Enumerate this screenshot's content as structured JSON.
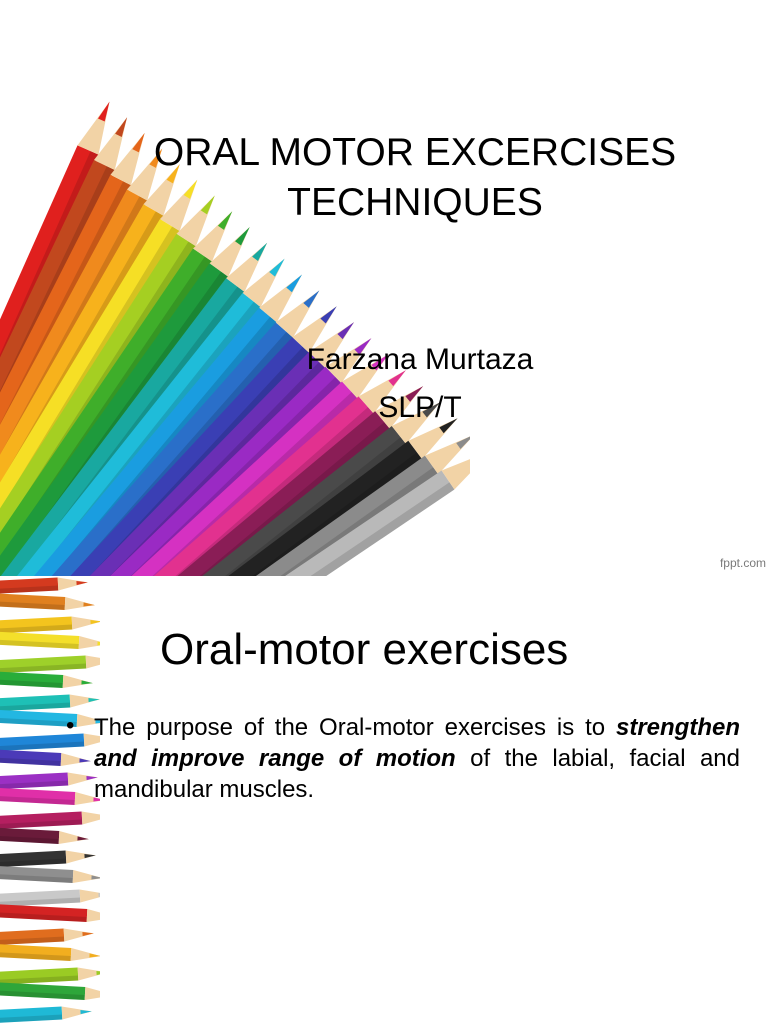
{
  "slide1": {
    "title_line1": "ORAL MOTOR EXCERCISES",
    "title_line2": "TECHNIQUES",
    "author": "Farzana Murtaza",
    "credential": "SLP/T",
    "credit": "fppt.com",
    "pencil_colors": [
      "#e0201e",
      "#c1481e",
      "#e4651b",
      "#f08a1d",
      "#f7b21c",
      "#f6df25",
      "#a5cf22",
      "#3fae2a",
      "#1e9a3c",
      "#19a8a0",
      "#1fbcd9",
      "#1a9de0",
      "#2a6fc9",
      "#3a3fb4",
      "#6a2fb5",
      "#9a2ac4",
      "#d531c2",
      "#e2318f",
      "#8a1d56",
      "#4a4a4a",
      "#222222",
      "#8b8b8b",
      "#b9b9b9"
    ]
  },
  "slide2": {
    "title": "Oral-motor exercises",
    "bullet_marker": "•",
    "bullet_pre": "The purpose of the Oral-motor exercises is to ",
    "bullet_emphasis": "strengthen and improve range of motion",
    "bullet_post": " of the labial, facial and mandibular muscles.",
    "pencil_colors": [
      "#d43a1f",
      "#e0801f",
      "#f3c41e",
      "#f4df2a",
      "#9ed02a",
      "#29ad3a",
      "#1ec0b6",
      "#23b7e2",
      "#1f86d8",
      "#4b3ab8",
      "#9b30c4",
      "#e02fa8",
      "#b51f60",
      "#6a1b3a",
      "#333333",
      "#8f8f8f",
      "#c9c9c9",
      "#d42323",
      "#e06d1e",
      "#f2ae1f",
      "#9acb24",
      "#2ea63a",
      "#1fb9d6"
    ]
  }
}
